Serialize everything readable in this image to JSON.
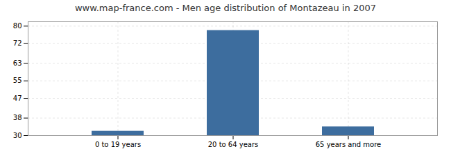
{
  "chart_data": {
    "type": "bar",
    "title": "www.map-france.com - Men age distribution of Montazeau in 2007",
    "categories": [
      "0 to 19 years",
      "20 to 64 years",
      "65 years and more"
    ],
    "values": [
      32,
      78,
      34
    ],
    "color": "#3d6d9e",
    "ylim": [
      30,
      82
    ],
    "yticks": [
      30,
      38,
      47,
      55,
      63,
      72,
      80
    ],
    "grid": true
  }
}
